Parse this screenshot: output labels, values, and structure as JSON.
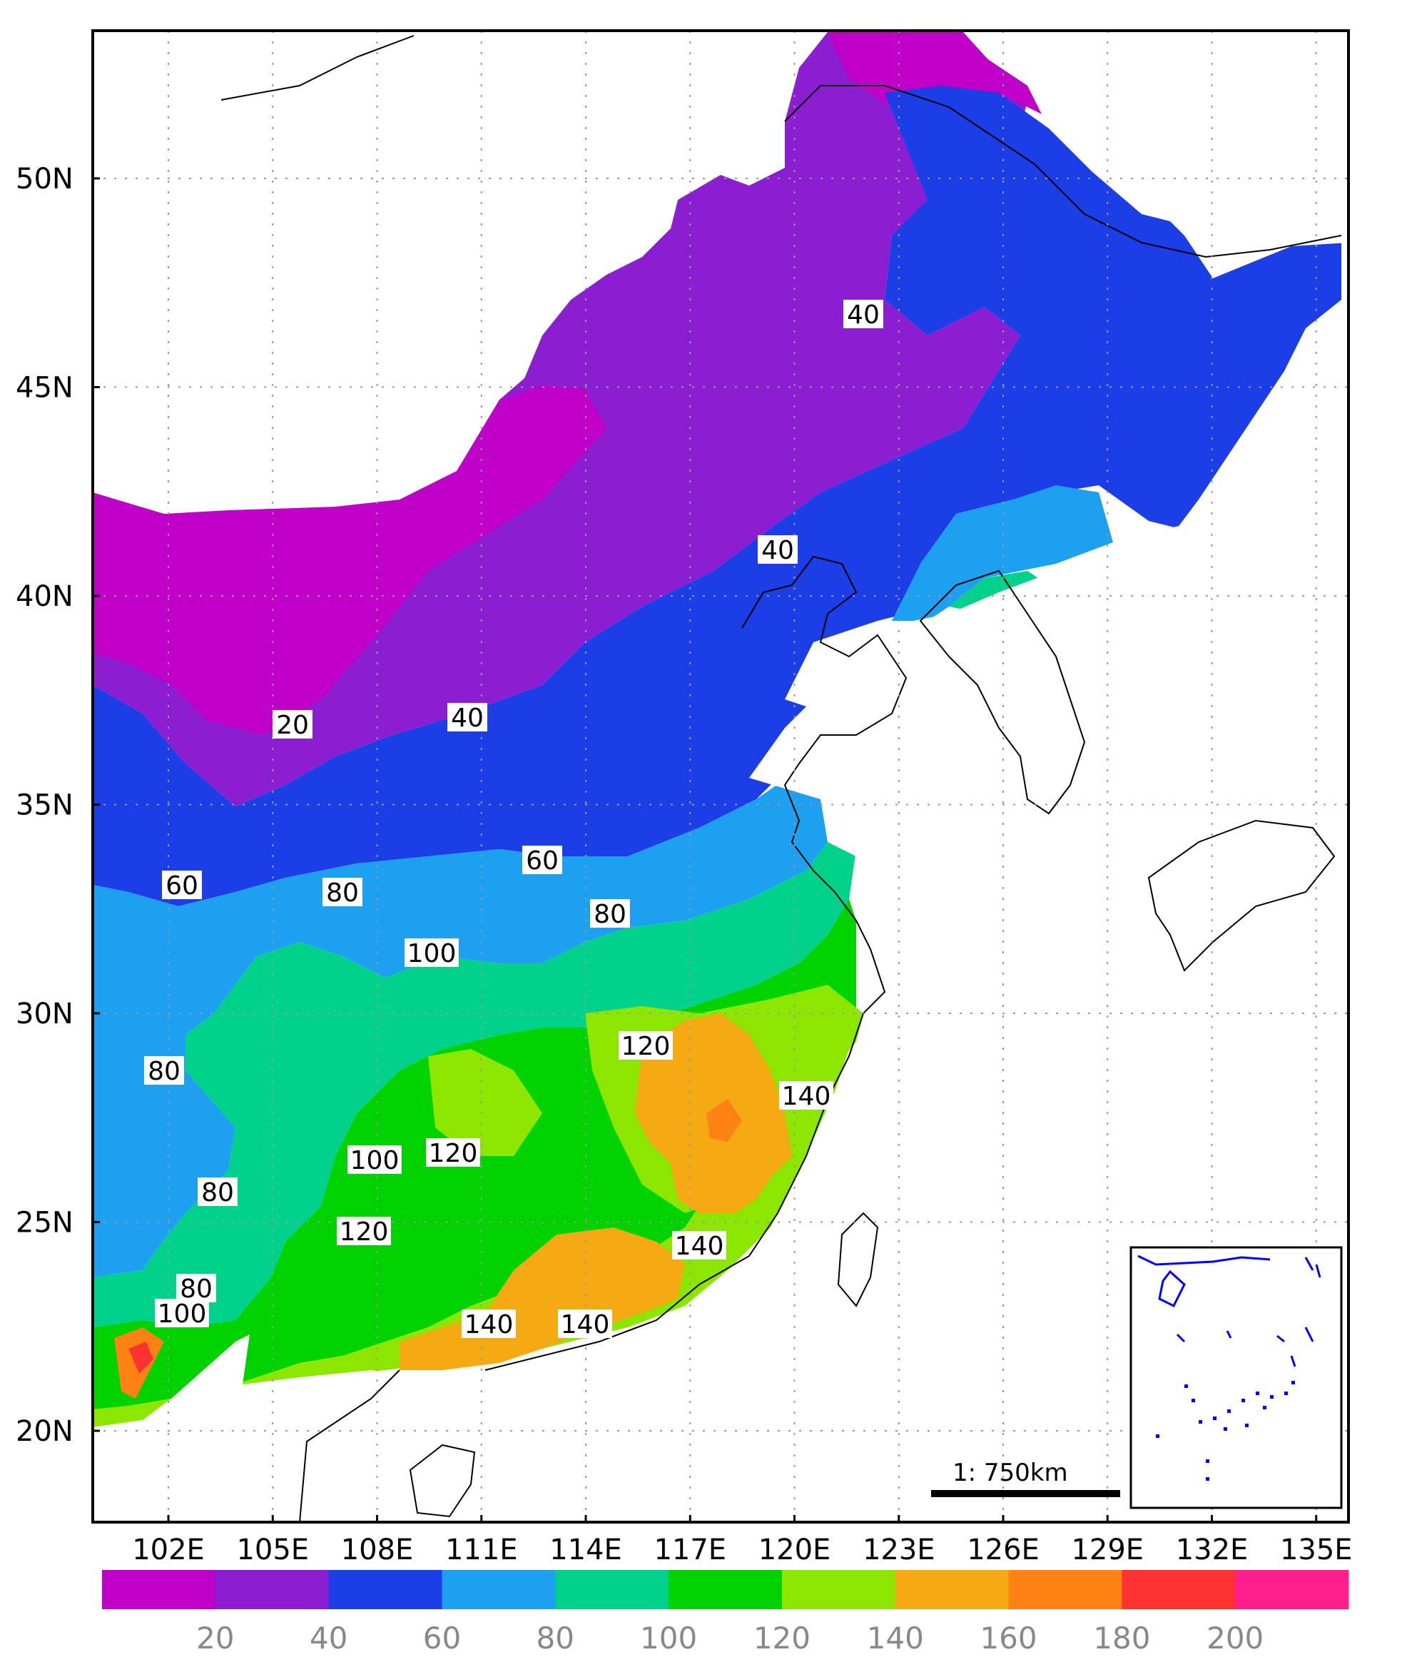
{
  "map": {
    "lat_labels": [
      "50N",
      "45N",
      "40N",
      "35N",
      "30N",
      "25N",
      "20N"
    ],
    "lon_labels": [
      "102E",
      "105E",
      "108E",
      "111E",
      "114E",
      "117E",
      "120E",
      "123E",
      "126E",
      "129E",
      "132E",
      "135E"
    ],
    "contour_labels": [
      "40",
      "40",
      "20",
      "40",
      "60",
      "60",
      "80",
      "80",
      "100",
      "80",
      "120",
      "140",
      "80",
      "100",
      "120",
      "120",
      "140",
      "80",
      "100",
      "140",
      "140"
    ],
    "scale_bar_label": "1: 750km"
  },
  "legend": {
    "colors": [
      "#c000c8",
      "#8c1ed2",
      "#1c3ee6",
      "#1ea0f0",
      "#00d28c",
      "#00d200",
      "#8ce600",
      "#f5aa14",
      "#ff8214",
      "#ff3232",
      "#ff1e8c"
    ],
    "tick_labels": [
      "20",
      "40",
      "60",
      "80",
      "100",
      "120",
      "140",
      "160",
      "180",
      "200"
    ]
  },
  "chart_data": {
    "type": "heatmap",
    "lon_ticks_deg_E": [
      102,
      105,
      108,
      111,
      114,
      117,
      120,
      123,
      126,
      129,
      132,
      135
    ],
    "lat_ticks_deg_N": [
      50,
      45,
      40,
      35,
      30,
      25,
      20
    ],
    "color_scale_breaks": [
      20,
      40,
      60,
      80,
      100,
      120,
      140,
      160,
      180,
      200
    ],
    "contour_levels_labeled": [
      20,
      40,
      60,
      80,
      100,
      120,
      140
    ],
    "grid": true,
    "inset_map": true,
    "scale_bar": "1: 750km"
  }
}
